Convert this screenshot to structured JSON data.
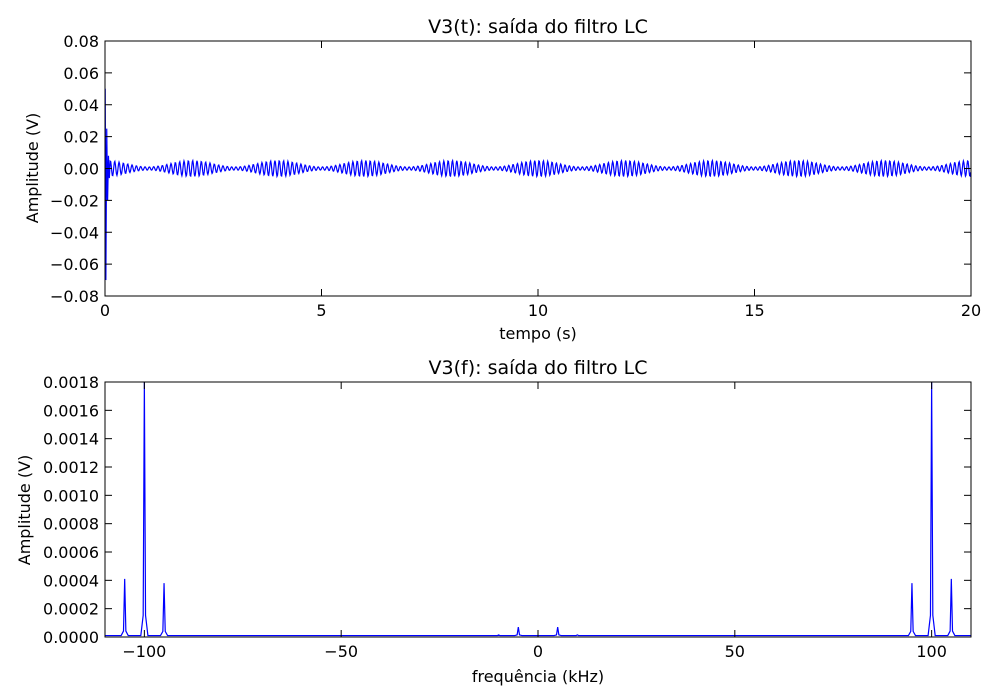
{
  "chart_data": [
    {
      "type": "line",
      "title": "V3(t): saída do filtro LC",
      "xlabel": "tempo (s)",
      "ylabel": "Amplitude (V)",
      "xlim": [
        0,
        20
      ],
      "ylim": [
        -0.08,
        0.08
      ],
      "xticks": [
        "0",
        "5",
        "10",
        "15",
        "20"
      ],
      "yticks": [
        "0.08",
        "0.06",
        "0.04",
        "0.02",
        "0.00",
        "−0.02",
        "−0.04",
        "−0.06",
        "−0.08"
      ],
      "grid": false,
      "color": "#0000ff",
      "signal": {
        "description": "damped transient at t=0 followed by an amplitude-modulated carrier",
        "transient_peak": 0.05,
        "transient_trough": -0.07,
        "steady_amplitude_max": 0.005,
        "steady_amplitude_min": 0.001,
        "envelope_period_s": 2.0
      }
    },
    {
      "type": "line",
      "title": "V3(f): saída do filtro LC",
      "xlabel": "frequência (kHz)",
      "ylabel": "Amplitude (V)",
      "xlim": [
        -110,
        110
      ],
      "ylim": [
        0,
        0.0018
      ],
      "xticks": [
        "−100",
        "−50",
        "0",
        "50",
        "100"
      ],
      "yticks": [
        "0.0018",
        "0.0016",
        "0.0014",
        "0.0012",
        "0.0010",
        "0.0008",
        "0.0006",
        "0.0004",
        "0.0002",
        "0.0000"
      ],
      "grid": false,
      "color": "#0000ff",
      "baseline": 1e-05,
      "peaks": [
        {
          "x": -105,
          "y": 0.00041
        },
        {
          "x": -100,
          "y": 0.0018
        },
        {
          "x": -95,
          "y": 0.00038
        },
        {
          "x": -10,
          "y": 1.5e-05
        },
        {
          "x": -5,
          "y": 7e-05
        },
        {
          "x": 5,
          "y": 7e-05
        },
        {
          "x": 10,
          "y": 1.5e-05
        },
        {
          "x": 95,
          "y": 0.00038
        },
        {
          "x": 100,
          "y": 0.0018
        },
        {
          "x": 105,
          "y": 0.00041
        }
      ]
    }
  ]
}
